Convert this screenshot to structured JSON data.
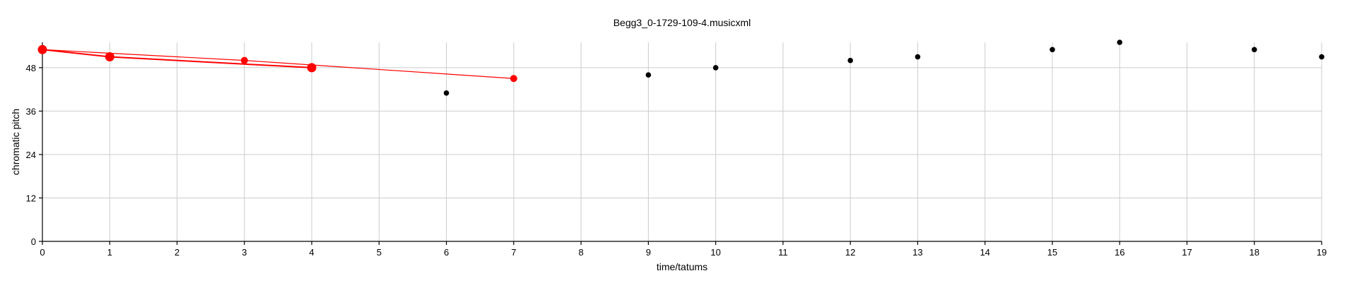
{
  "chart_data": {
    "type": "scatter",
    "title": "Begg3_0-1729-109-4.musicxml",
    "xlabel": "time/tatums",
    "ylabel": "chromatic pitch",
    "xlim": [
      0,
      19
    ],
    "ylim": [
      0,
      55
    ],
    "x_ticks": [
      0,
      1,
      2,
      3,
      4,
      5,
      6,
      7,
      8,
      9,
      10,
      11,
      12,
      13,
      14,
      15,
      16,
      17,
      18,
      19
    ],
    "y_ticks": [
      0,
      12,
      24,
      36,
      48
    ],
    "grid": true,
    "notes": {
      "name": "",
      "color": "#000000",
      "points": [
        {
          "x": 0,
          "y": 53
        },
        {
          "x": 1,
          "y": 51
        },
        {
          "x": 3,
          "y": 50
        },
        {
          "x": 4,
          "y": 48
        },
        {
          "x": 6,
          "y": 41
        },
        {
          "x": 7,
          "y": 45
        },
        {
          "x": 9,
          "y": 46
        },
        {
          "x": 10,
          "y": 48
        },
        {
          "x": 12,
          "y": 50
        },
        {
          "x": 13,
          "y": 51
        },
        {
          "x": 15,
          "y": 53
        },
        {
          "x": 16,
          "y": 55
        },
        {
          "x": 18,
          "y": 53
        },
        {
          "x": 19,
          "y": 51
        }
      ]
    },
    "highlight_color": "#ff0000",
    "highlight_lines": [
      {
        "points": [
          {
            "x": 0,
            "y": 53
          },
          {
            "x": 1,
            "y": 51
          },
          {
            "x": 4,
            "y": 48
          }
        ],
        "width": 2
      },
      {
        "points": [
          {
            "x": 0,
            "y": 53
          },
          {
            "x": 3,
            "y": 50
          },
          {
            "x": 7,
            "y": 45
          }
        ],
        "width": 1.2
      }
    ],
    "highlight_points": [
      {
        "x": 0,
        "y": 53,
        "size": "large"
      },
      {
        "x": 1,
        "y": 51,
        "size": "large"
      },
      {
        "x": 4,
        "y": 48,
        "size": "large"
      },
      {
        "x": 3,
        "y": 50,
        "size": "small"
      },
      {
        "x": 7,
        "y": 45,
        "size": "small"
      }
    ]
  }
}
